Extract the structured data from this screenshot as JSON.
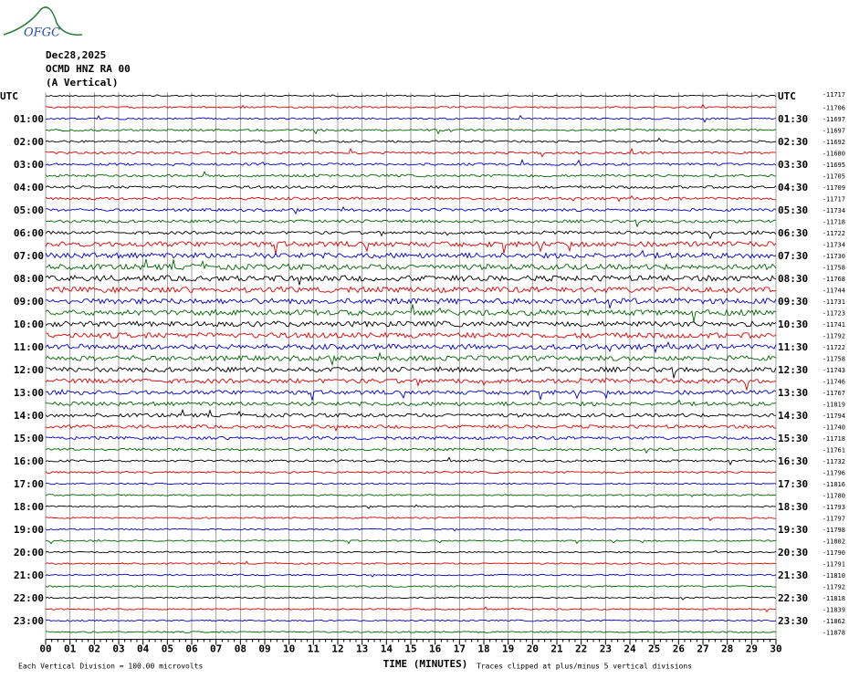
{
  "header": {
    "logo": "OFGC",
    "date": "Dec28,2025",
    "station": "OCMD HNZ RA 00",
    "component": "(A Vertical)"
  },
  "left_labels": [
    "UTC",
    "01:00",
    "02:00",
    "03:00",
    "04:00",
    "05:00",
    "06:00",
    "07:00",
    "08:00",
    "09:00",
    "10:00",
    "11:00",
    "12:00",
    "13:00",
    "14:00",
    "15:00",
    "16:00",
    "17:00",
    "18:00",
    "19:00",
    "20:00",
    "21:00",
    "22:00",
    "23:00"
  ],
  "right_labels": [
    "UTC",
    "01:30",
    "02:30",
    "03:30",
    "04:30",
    "05:30",
    "06:30",
    "07:30",
    "08:30",
    "09:30",
    "10:30",
    "11:30",
    "12:30",
    "13:30",
    "14:30",
    "15:30",
    "16:30",
    "17:30",
    "18:30",
    "19:30",
    "20:30",
    "21:30",
    "22:30",
    "23:30"
  ],
  "trace_offsets": [
    "-11717",
    "-11706",
    "-11697",
    "-11697",
    "-11692",
    "-11680",
    "-11695",
    "-11705",
    "-11709",
    "-11717",
    "-11734",
    "-11718",
    "-11722",
    "-11734",
    "-11730",
    "-11758",
    "-11768",
    "-11744",
    "-11731",
    "-11723",
    "-11741",
    "-11792",
    "-11722",
    "-11758",
    "-11743",
    "-11746",
    "-11767",
    "-11819",
    "-11794",
    "-11740",
    "-11718",
    "-11761",
    "-11732",
    "-11796",
    "-11816",
    "-11780",
    "-11793",
    "-11797",
    "-11798",
    "-11802",
    "-11790",
    "-11791",
    "-11810",
    "-11792",
    "-11818",
    "-11839",
    "-11862",
    "-11878"
  ],
  "x_axis": {
    "ticks": [
      "00",
      "01",
      "02",
      "03",
      "04",
      "05",
      "06",
      "07",
      "08",
      "09",
      "10",
      "11",
      "12",
      "13",
      "14",
      "15",
      "16",
      "17",
      "18",
      "19",
      "20",
      "21",
      "22",
      "23",
      "24",
      "25",
      "26",
      "27",
      "28",
      "29",
      "30"
    ],
    "title": "TIME (MINUTES)"
  },
  "footer": {
    "scale_note": "Each Vertical Division =  100.00 microvolts",
    "clip_note": "Traces clipped at plus/minus 5 vertical divisions"
  }
}
